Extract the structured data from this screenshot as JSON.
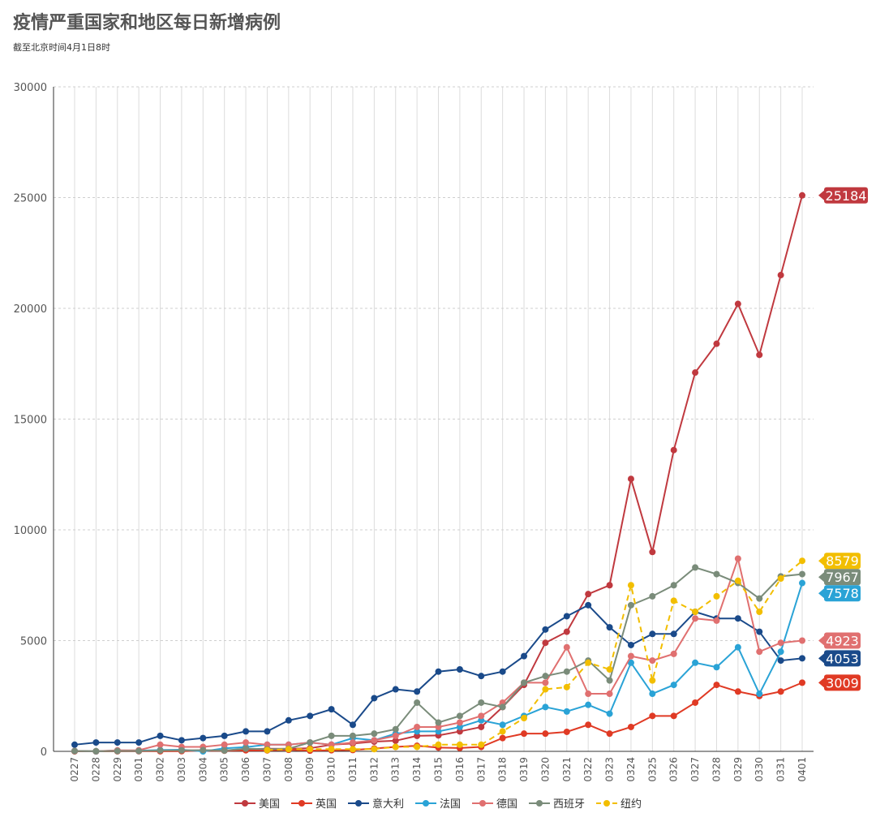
{
  "title": "疫情严重国家和地区每日新增病例",
  "subtitle": "截至北京时间4月1日8时",
  "chart_data": {
    "type": "line",
    "x": [
      "0227",
      "0228",
      "0229",
      "0301",
      "0302",
      "0303",
      "0304",
      "0305",
      "0306",
      "0307",
      "0308",
      "0309",
      "0310",
      "0311",
      "0312",
      "0313",
      "0314",
      "0315",
      "0316",
      "0317",
      "0318",
      "0319",
      "0320",
      "0321",
      "0322",
      "0323",
      "0324",
      "0325",
      "0326",
      "0327",
      "0328",
      "0329",
      "0330",
      "0331",
      "0401"
    ],
    "ylim": [
      0,
      30000
    ],
    "yticks": [
      0,
      5000,
      10000,
      15000,
      20000,
      25000,
      30000
    ],
    "grid": true,
    "legend_position": "bottom",
    "series": [
      {
        "name": "美国",
        "color": "#c0393f",
        "dashed": false,
        "end_label": "25184",
        "values": [
          1,
          0,
          8,
          6,
          20,
          14,
          24,
          36,
          96,
          117,
          116,
          140,
          300,
          352,
          440,
          479,
          700,
          720,
          900,
          1100,
          2000,
          3000,
          4900,
          5400,
          7100,
          7500,
          12300,
          9000,
          13600,
          17100,
          18400,
          20200,
          17900,
          21500,
          25100
        ]
      },
      {
        "name": "英国",
        "color": "#e03a24",
        "dashed": false,
        "end_label": "3009",
        "values": [
          3,
          0,
          5,
          12,
          4,
          11,
          34,
          29,
          48,
          43,
          67,
          30,
          50,
          60,
          130,
          200,
          250,
          170,
          150,
          200,
          600,
          800,
          800,
          880,
          1200,
          800,
          1100,
          1600,
          1600,
          2200,
          3000,
          2700,
          2500,
          2700,
          3100
        ]
      },
      {
        "name": "意大利",
        "color": "#1a4a8a",
        "dashed": false,
        "end_label": "4053",
        "values": [
          300,
          400,
          400,
          400,
          700,
          500,
          600,
          700,
          900,
          900,
          1400,
          1600,
          1900,
          1200,
          2400,
          2800,
          2700,
          3600,
          3700,
          3400,
          3600,
          4300,
          5500,
          6100,
          6600,
          5600,
          4800,
          5300,
          5300,
          6300,
          6000,
          6000,
          5400,
          4100,
          4200
        ]
      },
      {
        "name": "法国",
        "color": "#2aa3d6",
        "dashed": false,
        "end_label": "7578",
        "values": [
          19,
          0,
          43,
          30,
          61,
          73,
          0,
          138,
          190,
          300,
          300,
          400,
          300,
          600,
          500,
          800,
          900,
          900,
          1100,
          1400,
          1200,
          1600,
          2000,
          1800,
          2100,
          1700,
          4000,
          2600,
          3000,
          4000,
          3800,
          4700,
          2600,
          4500,
          7600
        ]
      },
      {
        "name": "德国",
        "color": "#e07070",
        "dashed": false,
        "end_label": "4923",
        "values": [
          20,
          5,
          45,
          50,
          300,
          200,
          200,
          300,
          400,
          300,
          300,
          400,
          300,
          400,
          500,
          700,
          1100,
          1100,
          1300,
          1600,
          2200,
          3100,
          3100,
          4700,
          2600,
          2600,
          4300,
          4100,
          4400,
          6000,
          5900,
          8700,
          4500,
          4900,
          5000
        ]
      },
      {
        "name": "西班牙",
        "color": "#7a8c7a",
        "dashed": false,
        "end_label": "7967",
        "values": [
          13,
          8,
          13,
          17,
          39,
          45,
          57,
          37,
          124,
          95,
          120,
          400,
          700,
          700,
          800,
          1000,
          2200,
          1300,
          1600,
          2200,
          2000,
          3100,
          3400,
          3600,
          4100,
          3200,
          6600,
          7000,
          7500,
          8300,
          8000,
          7600,
          6900,
          7900,
          8000
        ]
      },
      {
        "name": "纽约",
        "color": "#f2be00",
        "dashed": true,
        "end_label": "8579",
        "values": [
          null,
          null,
          null,
          null,
          null,
          null,
          null,
          null,
          null,
          58,
          100,
          100,
          100,
          100,
          100,
          200,
          200,
          300,
          300,
          300,
          900,
          1500,
          2800,
          2900,
          4000,
          3700,
          7500,
          3200,
          6800,
          6300,
          7000,
          7700,
          6300,
          7800,
          8600
        ]
      }
    ]
  }
}
